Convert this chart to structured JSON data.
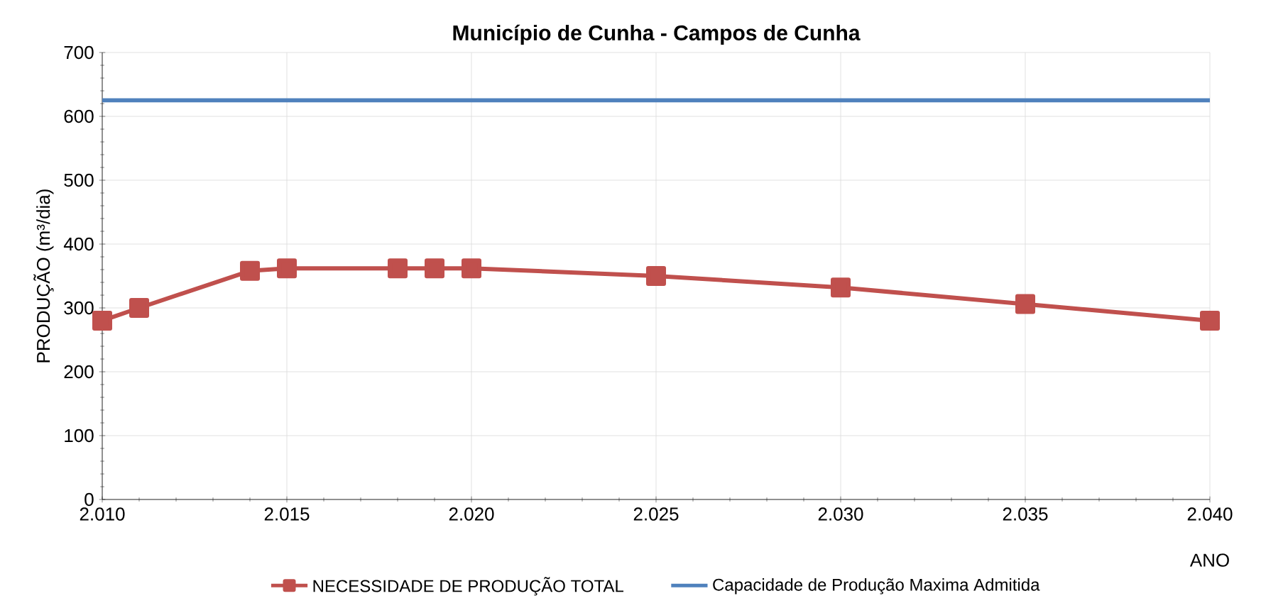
{
  "chart_data": {
    "type": "line",
    "title": "Município de Cunha - Campos de Cunha",
    "ylabel": "PRODUÇÃO (m³/dia)",
    "xlabel": "ANO",
    "xlim": [
      2010,
      2040
    ],
    "xticks": [
      {
        "value": 2010,
        "label": "2.010"
      },
      {
        "value": 2015,
        "label": "2.015"
      },
      {
        "value": 2020,
        "label": "2.020"
      },
      {
        "value": 2025,
        "label": "2.025"
      },
      {
        "value": 2030,
        "label": "2.030"
      },
      {
        "value": 2035,
        "label": "2.035"
      },
      {
        "value": 2040,
        "label": "2.040"
      }
    ],
    "ylim": [
      0,
      700
    ],
    "yticks": [
      0,
      100,
      200,
      300,
      400,
      500,
      600,
      700
    ],
    "grid": true,
    "legend": "bottom",
    "series": [
      {
        "name": "NECESSIDADE DE PRODUÇÃO TOTAL",
        "color": "#c0504d",
        "marker": "square",
        "x": [
          2010,
          2011,
          2014,
          2015,
          2018,
          2019,
          2020,
          2025,
          2030,
          2035,
          2040
        ],
        "values": [
          280,
          300,
          358,
          362,
          362,
          362,
          362,
          350,
          332,
          306,
          280
        ]
      },
      {
        "name": "Capacidade de Produção Maxima Admitida",
        "color": "#4f81bd",
        "marker": "none",
        "x": [
          2010,
          2040
        ],
        "values": [
          625,
          625
        ]
      }
    ]
  }
}
